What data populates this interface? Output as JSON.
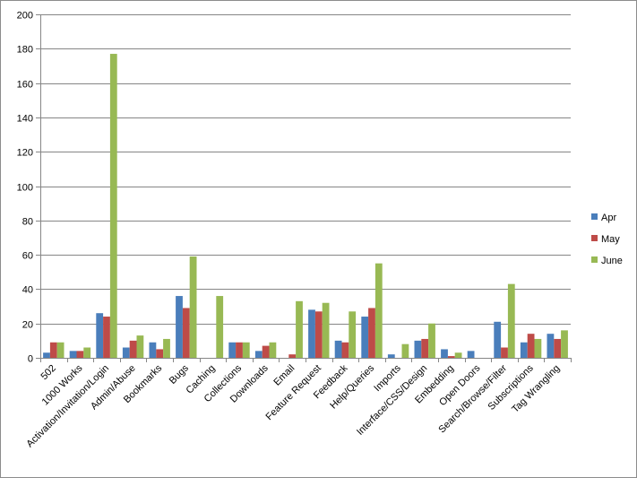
{
  "chart_data": {
    "type": "bar",
    "categories": [
      "502",
      "1000 Works",
      "Activation/Invitation/Login",
      "Admin/Abuse",
      "Bookmarks",
      "Bugs",
      "Caching",
      "Collections",
      "Downloads",
      "Email",
      "Feature Request",
      "Feedback",
      "Help/Queries",
      "Imports",
      "Interface/CSS/Design",
      "Embedding",
      "Open Doors",
      "Search/Browse/Filter",
      "Subscriptions",
      "Tag Wrangling"
    ],
    "series": [
      {
        "name": "Apr",
        "color": "#4a7ebb",
        "values": [
          3,
          4,
          26,
          6,
          9,
          36,
          0,
          9,
          4,
          0,
          28,
          10,
          24,
          2,
          10,
          5,
          4,
          21,
          9,
          14
        ]
      },
      {
        "name": "May",
        "color": "#be4b48",
        "values": [
          9,
          4,
          24,
          10,
          5,
          29,
          0,
          9,
          7,
          2,
          27,
          9,
          29,
          0,
          11,
          1,
          0,
          6,
          14,
          11
        ]
      },
      {
        "name": "June",
        "color": "#98b954",
        "values": [
          9,
          6,
          177,
          13,
          11,
          59,
          36,
          9,
          9,
          33,
          32,
          27,
          55,
          8,
          20,
          3,
          0,
          43,
          11,
          16
        ]
      }
    ],
    "ylim": [
      0,
      200
    ],
    "yticks": [
      "0",
      "20",
      "40",
      "60",
      "80",
      "100",
      "120",
      "140",
      "160",
      "180",
      "200"
    ],
    "grid": true,
    "legend_position": "right"
  }
}
